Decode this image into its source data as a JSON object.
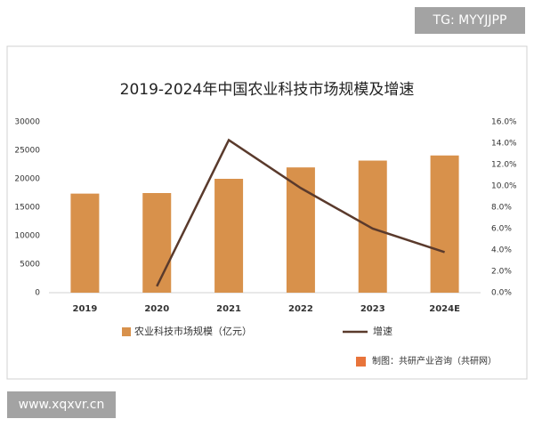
{
  "chart_data": {
    "type": "bar",
    "title": "2019-2024年中国农业科技市场规模及增速",
    "categories": [
      "2019",
      "2020",
      "2021",
      "2022",
      "2023",
      "2024E"
    ],
    "series": [
      {
        "name": "农业科技市场规模（亿元）",
        "type": "bar",
        "color": "#d8914b",
        "values": [
          17400,
          17500,
          20000,
          22000,
          23200,
          24100
        ]
      },
      {
        "name": "增速",
        "type": "line",
        "axis": "y2",
        "color": "#5a3a2c",
        "values": [
          null,
          0.6,
          14.3,
          9.8,
          6.0,
          3.8
        ]
      }
    ],
    "ylim": [
      0,
      30000
    ],
    "yticks": [
      0,
      5000,
      10000,
      15000,
      20000,
      25000,
      30000
    ],
    "y2lim": [
      0,
      16
    ],
    "y2ticks": [
      {
        "value": 0,
        "label": "0.0%"
      },
      {
        "value": 2,
        "label": "2.0%"
      },
      {
        "value": 4,
        "label": "4.0%"
      },
      {
        "value": 6,
        "label": "6.0%"
      },
      {
        "value": 8,
        "label": "8.0%"
      },
      {
        "value": 10,
        "label": "10.0%"
      },
      {
        "value": 12,
        "label": "12.0%"
      },
      {
        "value": 14,
        "label": "14.0%"
      },
      {
        "value": 16,
        "label": "16.0%"
      }
    ],
    "grid": false,
    "legend": "bottom",
    "source": "制图：共研产业咨询（共研网）"
  },
  "watermark": "TG: MYYJJPP",
  "website": "www.xqxvr.cn"
}
